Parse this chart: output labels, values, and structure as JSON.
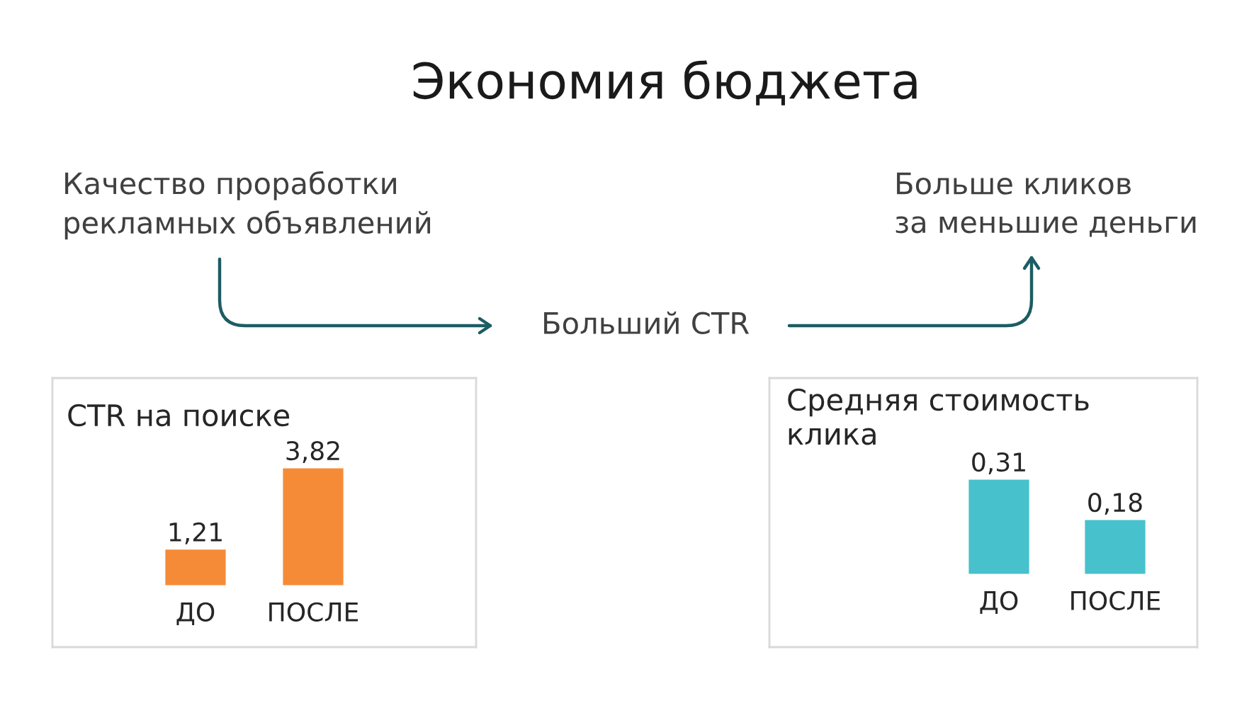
{
  "chart_data": [
    {
      "type": "other",
      "title": "Экономия бюджета",
      "annotations": [
        "Качество проработки\nрекламных объявлений",
        "Больший CTR",
        "Больше кликов\nза меньшие деньги"
      ]
    },
    {
      "type": "bar",
      "title": "CTR на поиске",
      "categories": [
        "ДО",
        "ПОСЛЕ"
      ],
      "values": [
        1.21,
        3.82
      ],
      "color": "#f68b37",
      "value_labels": [
        "1,21",
        "3,82"
      ]
    },
    {
      "type": "bar",
      "title": "Средняя стоимость\nклика",
      "categories": [
        "ДО",
        "ПОСЛЕ"
      ],
      "values": [
        0.31,
        0.18
      ],
      "color": "#47c1cc",
      "value_labels": [
        "0,31",
        "0,18"
      ]
    }
  ]
}
